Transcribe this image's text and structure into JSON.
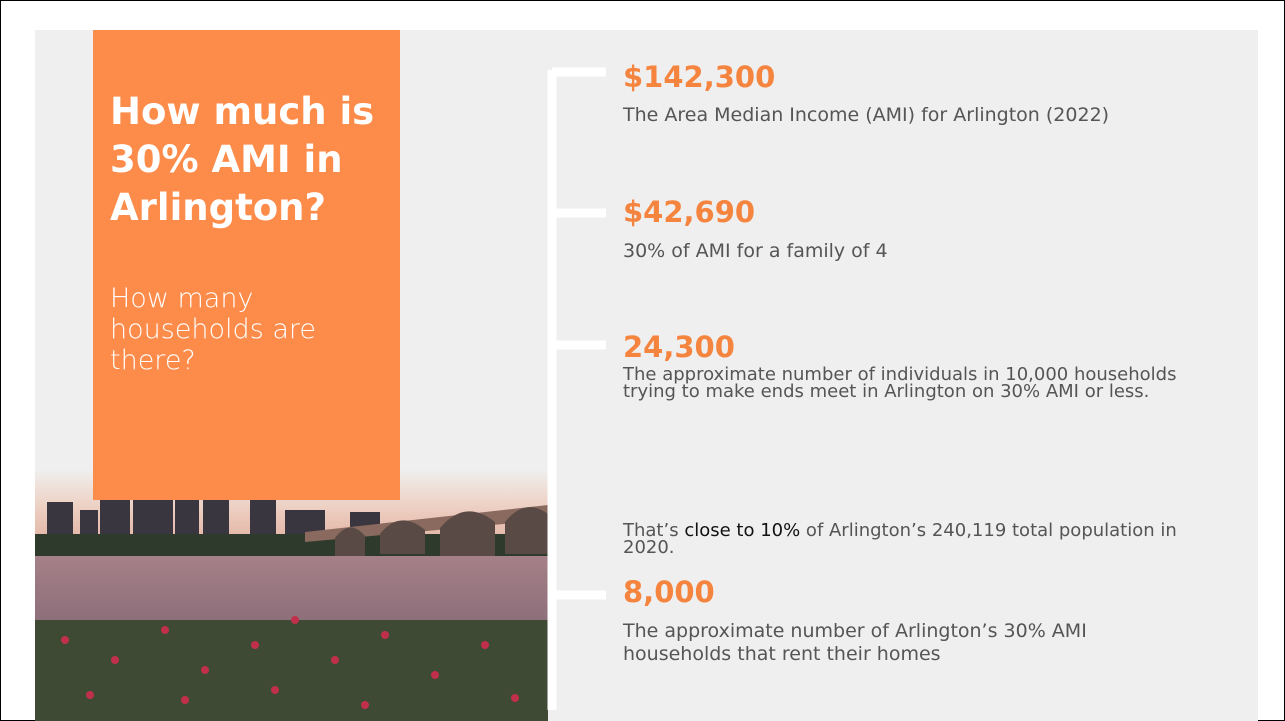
{
  "title": {
    "heading": "How much is 30% AMI in Arlington?",
    "subheading": "How many households are there?"
  },
  "facts": [
    {
      "value": "$142,300",
      "description": "The Area Median Income (AMI) for Arlington (2022)"
    },
    {
      "value": "$42,690",
      "description": "30% of AMI for a family of 4"
    },
    {
      "value": "24,300",
      "description": "The approximate number of individuals in 10,000 households trying to make ends meet in Arlington on 30% AMI or less."
    },
    {
      "value": "8,000",
      "description": "The approximate number of Arlington’s 30% AMI households that rent their homes"
    }
  ],
  "note": {
    "before": "That’s ",
    "emphasis": "close to 10%",
    "after": " of Arlington’s 240,119 total population in 2020."
  }
}
